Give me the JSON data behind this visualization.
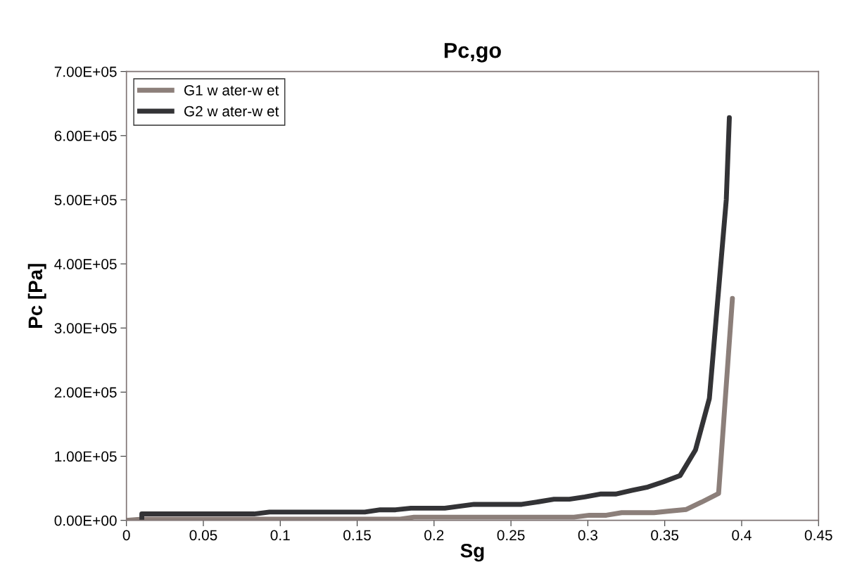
{
  "chart_data": {
    "type": "line",
    "title": "Pc,go",
    "xlabel": "Sg",
    "ylabel": "Pc [Pa]",
    "xlim": [
      0,
      0.45
    ],
    "xticks": [
      0,
      0.05,
      0.1,
      0.15,
      0.2,
      0.25,
      0.3,
      0.35,
      0.4,
      0.45
    ],
    "ylim": [
      0,
      700000
    ],
    "yticks": [
      {
        "value": 0,
        "label": "0.00E+00"
      },
      {
        "value": 100000,
        "label": "1.00E+05"
      },
      {
        "value": 200000,
        "label": "2.00E+05"
      },
      {
        "value": 300000,
        "label": "3.00E+05"
      },
      {
        "value": 400000,
        "label": "4.00E+05"
      },
      {
        "value": 500000,
        "label": "5.00E+05"
      },
      {
        "value": 600000,
        "label": "6.00E+05"
      },
      {
        "value": 700000,
        "label": "7.00E+05"
      }
    ],
    "grid": false,
    "legend": "top left",
    "marker": "none",
    "line_style": "solid",
    "series": [
      {
        "name": "G1 w ater-w et",
        "color": "#8c7f7a",
        "x": [
          0,
          0.01,
          0.178,
          0.187,
          0.291,
          0.301,
          0.312,
          0.322,
          0.343,
          0.353,
          0.364,
          0.374,
          0.385,
          0.394
        ],
        "values": [
          0,
          2000,
          2000,
          5000,
          5000,
          8000,
          8000,
          12000,
          12000,
          14500,
          17000,
          28500,
          42000,
          346000
        ]
      },
      {
        "name": "G2 w ater-w et",
        "color": "#333336",
        "x": [
          0.01,
          0.01,
          0.083,
          0.093,
          0.155,
          0.165,
          0.175,
          0.185,
          0.207,
          0.226,
          0.257,
          0.268,
          0.278,
          0.288,
          0.298,
          0.308,
          0.318,
          0.329,
          0.339,
          0.349,
          0.36,
          0.37,
          0.379,
          0.39,
          0.392
        ],
        "values": [
          0,
          10000,
          10000,
          13000,
          13000,
          16500,
          16500,
          19000,
          19000,
          25000,
          25000,
          29000,
          33000,
          33000,
          36500,
          41000,
          41000,
          47000,
          52000,
          60000,
          70000,
          110000,
          190000,
          500000,
          628000
        ]
      }
    ]
  }
}
